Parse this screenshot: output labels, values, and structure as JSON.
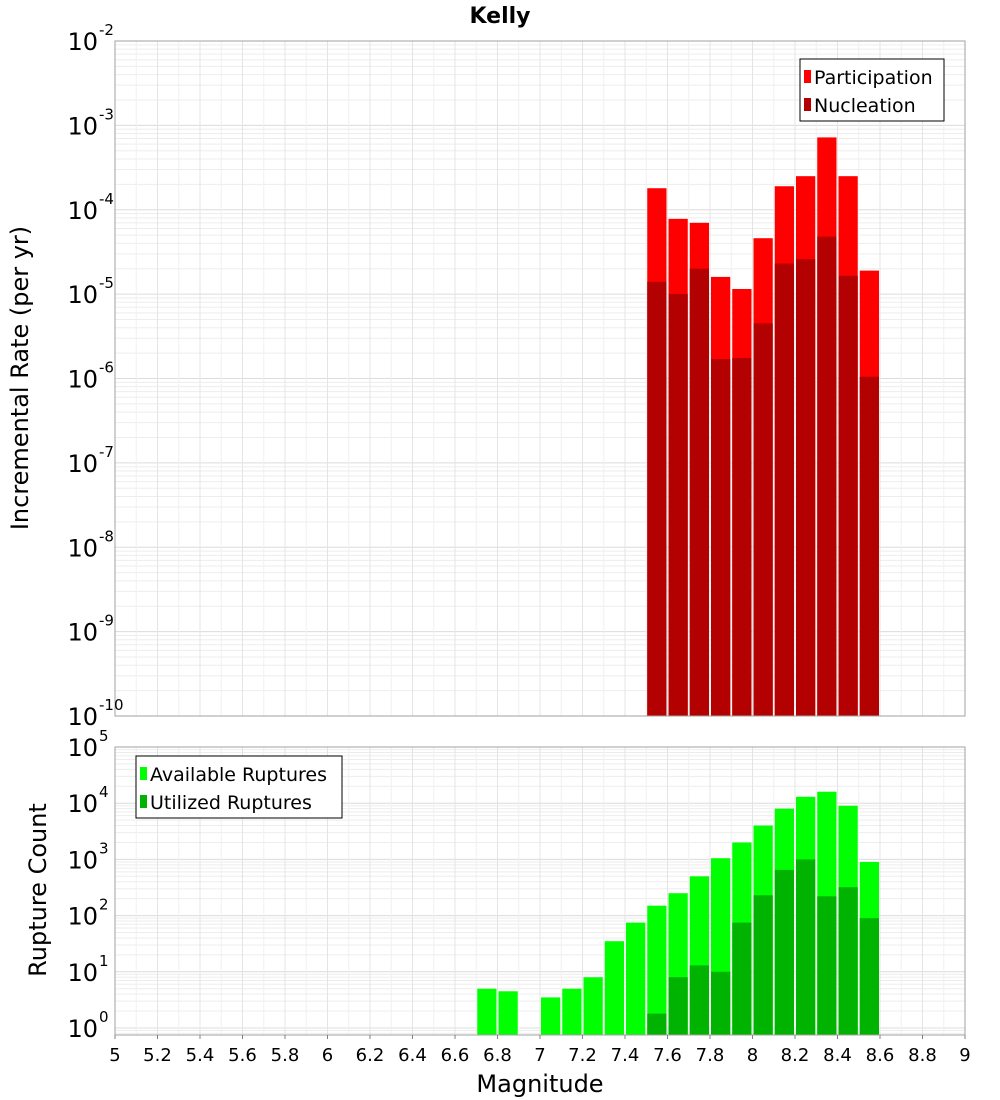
{
  "chart_data": [
    {
      "type": "bar",
      "title": "Kelly",
      "xlabel": "",
      "ylabel": "Incremental Rate (per yr)",
      "yscale": "log",
      "ylim": [
        1e-10,
        0.01
      ],
      "xlim": [
        5,
        9
      ],
      "ytick_labels": [
        {
          "base": "10",
          "exp": "-10",
          "value": 1e-10
        },
        {
          "base": "10",
          "exp": "-9",
          "value": 1e-09
        },
        {
          "base": "10",
          "exp": "-8",
          "value": 1e-08
        },
        {
          "base": "10",
          "exp": "-7",
          "value": 1e-07
        },
        {
          "base": "10",
          "exp": "-6",
          "value": 1e-06
        },
        {
          "base": "10",
          "exp": "-5",
          "value": 1e-05
        },
        {
          "base": "10",
          "exp": "-4",
          "value": 0.0001
        },
        {
          "base": "10",
          "exp": "-3",
          "value": 0.001
        },
        {
          "base": "10",
          "exp": "-2",
          "value": 0.01
        }
      ],
      "legend_position": "top-right",
      "grid": true,
      "bin_width": 0.1,
      "x": [
        7.55,
        7.65,
        7.75,
        7.85,
        7.95,
        8.05,
        8.15,
        8.25,
        8.35,
        8.45,
        8.55
      ],
      "series": [
        {
          "name": "Participation",
          "color": "#ff0000",
          "values": [
            0.00018,
            7.8e-05,
            7e-05,
            1.6e-05,
            1.15e-05,
            4.6e-05,
            0.00019,
            0.00025,
            0.00072,
            0.00025,
            1.9e-05
          ]
        },
        {
          "name": "Nucleation",
          "color": "#b30000",
          "values": [
            1.4e-05,
            1e-05,
            2e-05,
            1.7e-06,
            1.75e-06,
            4.5e-06,
            2.3e-05,
            2.6e-05,
            4.8e-05,
            1.65e-05,
            1.05e-06
          ]
        }
      ]
    },
    {
      "type": "bar",
      "title": "",
      "xlabel": "Magnitude",
      "ylabel": "Rupture Count",
      "yscale": "log",
      "ylim": [
        0.75,
        100000.0
      ],
      "xlim": [
        5,
        9
      ],
      "ytick_labels": [
        {
          "base": "10",
          "exp": "0",
          "value": 1
        },
        {
          "base": "10",
          "exp": "1",
          "value": 10
        },
        {
          "base": "10",
          "exp": "2",
          "value": 100
        },
        {
          "base": "10",
          "exp": "3",
          "value": 1000
        },
        {
          "base": "10",
          "exp": "4",
          "value": 10000
        },
        {
          "base": "10",
          "exp": "5",
          "value": 100000
        }
      ],
      "x_tick_labels": [
        "5",
        "5.2",
        "5.4",
        "5.6",
        "5.8",
        "6",
        "6.2",
        "6.4",
        "6.6",
        "6.8",
        "7",
        "7.2",
        "7.4",
        "7.6",
        "7.8",
        "8",
        "8.2",
        "8.4",
        "8.6",
        "8.8",
        "9"
      ],
      "legend_position": "top-left",
      "grid": true,
      "bin_width": 0.1,
      "x": [
        6.75,
        6.85,
        6.95,
        7.05,
        7.15,
        7.25,
        7.35,
        7.45,
        7.55,
        7.65,
        7.75,
        7.85,
        7.95,
        8.05,
        8.15,
        8.25,
        8.35,
        8.45,
        8.55
      ],
      "series": [
        {
          "name": "Available Ruptures",
          "color": "#00ff00",
          "values": [
            5,
            4.5,
            null,
            3.5,
            5,
            8,
            35,
            75,
            150,
            250,
            500,
            1050,
            2000,
            4000,
            8000,
            13000,
            16000,
            9000,
            900
          ]
        },
        {
          "name": "Utilized Ruptures",
          "color": "#00b300",
          "values": [
            null,
            null,
            null,
            null,
            null,
            null,
            null,
            null,
            1.8,
            8,
            13,
            10,
            75,
            230,
            650,
            1000,
            220,
            320,
            90
          ]
        }
      ]
    }
  ]
}
